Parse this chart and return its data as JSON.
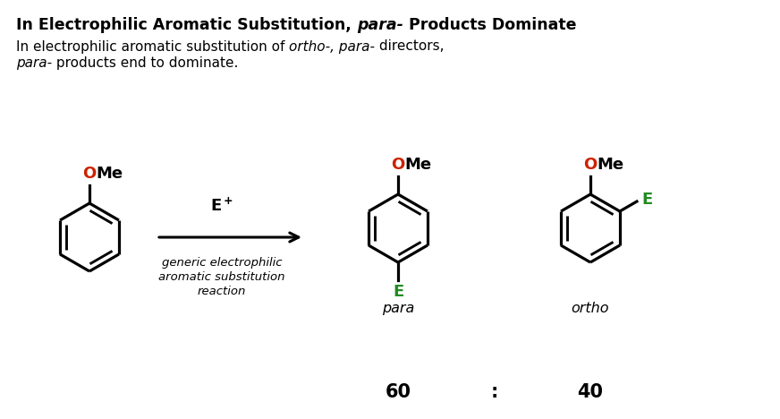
{
  "bg_color": "#ffffff",
  "black": "#000000",
  "ome_color": "#cc2200",
  "e_color": "#228B22",
  "title_part1": "In Electrophilic Aromatic Substitution, ",
  "title_part2": "para-",
  "title_part3": " Products Dominate",
  "sub1a": "In electrophilic aromatic substitution of ",
  "sub1b": "ortho-, para-",
  "sub1c": " directors,",
  "sub2a": "para-",
  "sub2b": " products end to dominate.",
  "label_para": "para",
  "label_ortho": "ortho",
  "reaction_desc": [
    "generic electrophilic",
    "aromatic substitution",
    "reaction"
  ],
  "ratio_60": "60",
  "ratio_colon": ":",
  "ratio_40": "40",
  "fig_w": 8.72,
  "fig_h": 4.68,
  "dpi": 100
}
